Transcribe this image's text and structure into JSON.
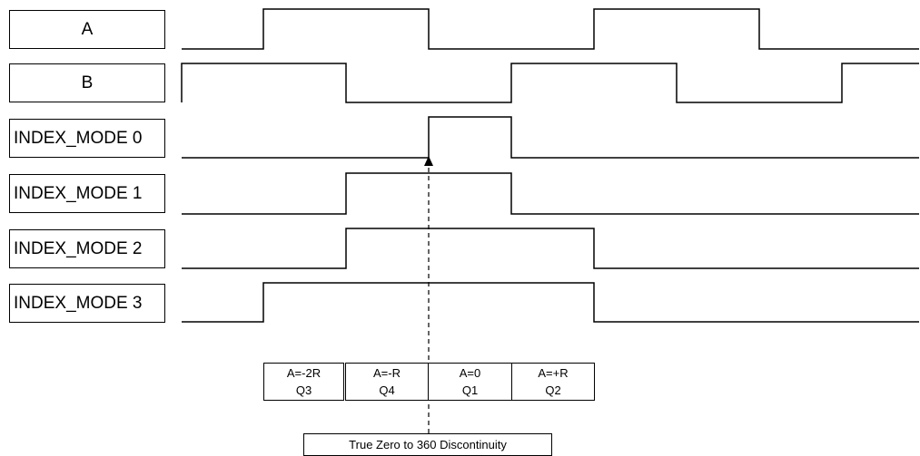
{
  "signals": [
    {
      "id": "a",
      "label": "A"
    },
    {
      "id": "b",
      "label": "B"
    },
    {
      "id": "index-mode-0",
      "label": "INDEX_MODE 0"
    },
    {
      "id": "index-mode-1",
      "label": "INDEX_MODE 1"
    },
    {
      "id": "index-mode-2",
      "label": "INDEX_MODE 2"
    },
    {
      "id": "index-mode-3",
      "label": "INDEX_MODE 3"
    }
  ],
  "quadrants": [
    {
      "value": "A=-2R",
      "quadrant": "Q3"
    },
    {
      "value": "A=-R",
      "quadrant": "Q4"
    },
    {
      "value": "A=0",
      "quadrant": "Q1"
    },
    {
      "value": "A=+R",
      "quadrant": "Q2"
    }
  ],
  "caption": "True Zero to 360 Discontinuity"
}
